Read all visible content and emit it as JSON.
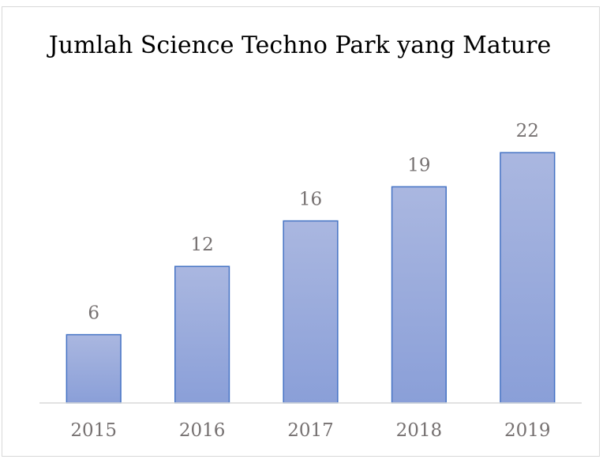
{
  "chart_data": {
    "type": "bar",
    "title": "Jumlah Science Techno Park yang Mature",
    "categories": [
      "2015",
      "2016",
      "2017",
      "2018",
      "2019"
    ],
    "values": [
      6,
      12,
      16,
      19,
      22
    ],
    "color": "#4472c4",
    "ylim": [
      0,
      25
    ]
  }
}
